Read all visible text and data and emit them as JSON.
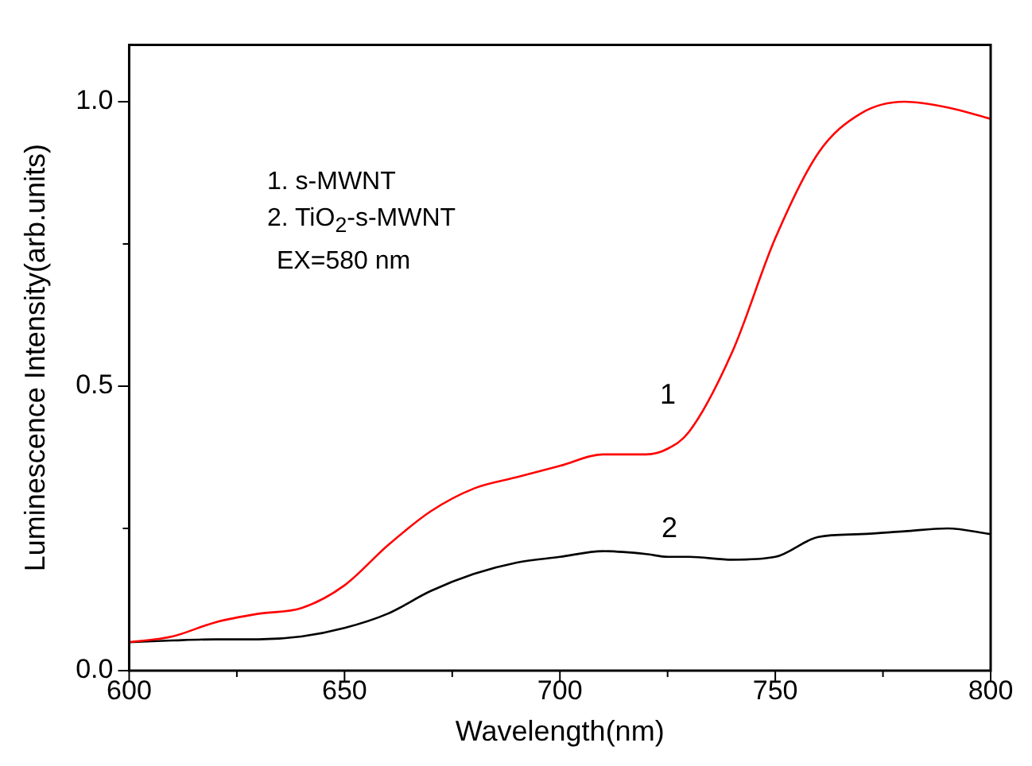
{
  "chart_data": {
    "type": "line",
    "xlabel": "Wavelength(nm)",
    "ylabel": "Luminescence Intensity(arb.units)",
    "xlim": [
      600,
      800
    ],
    "xticks": [
      600,
      {
        "value": 625,
        "label": null
      },
      650,
      {
        "value": 675,
        "label": null
      },
      700,
      {
        "value": 725,
        "label": null
      },
      750,
      {
        "value": 775,
        "label": null
      },
      800
    ],
    "ylim": [
      0,
      1.1
    ],
    "yticks": [
      {
        "value": 0,
        "label": "0.0"
      },
      {
        "value": 0.25,
        "label": null
      },
      {
        "value": 0.5,
        "label": "0.5"
      },
      {
        "value": 0.75,
        "label": null
      },
      {
        "value": 1,
        "label": "1.0"
      }
    ],
    "grid": false,
    "legend": false,
    "marker": "none",
    "line_style": "solid",
    "x": [
      600,
      610,
      620,
      630,
      640,
      650,
      660,
      670,
      680,
      690,
      700,
      710,
      720,
      725,
      730,
      740,
      750,
      760,
      770,
      780,
      790,
      800
    ],
    "series": [
      {
        "color": "#ff0000",
        "values": [
          0.05,
          0.06,
          0.085,
          0.1,
          0.11,
          0.15,
          0.22,
          0.28,
          0.32,
          0.34,
          0.36,
          0.38,
          0.38,
          0.39,
          0.42,
          0.56,
          0.76,
          0.91,
          0.98,
          1.0,
          0.99,
          0.97
        ]
      },
      {
        "color": "#000000",
        "values": [
          0.05,
          0.053,
          0.055,
          0.055,
          0.06,
          0.075,
          0.1,
          0.14,
          0.17,
          0.19,
          0.2,
          0.21,
          0.205,
          0.2,
          0.2,
          0.195,
          0.2,
          0.235,
          0.24,
          0.245,
          0.25,
          0.24
        ]
      }
    ],
    "annotations": [
      "1. s-MWNT",
      "2. TiO$_{2}$-s-MWNT",
      "EX=580 nm",
      "1",
      "2"
    ]
  }
}
